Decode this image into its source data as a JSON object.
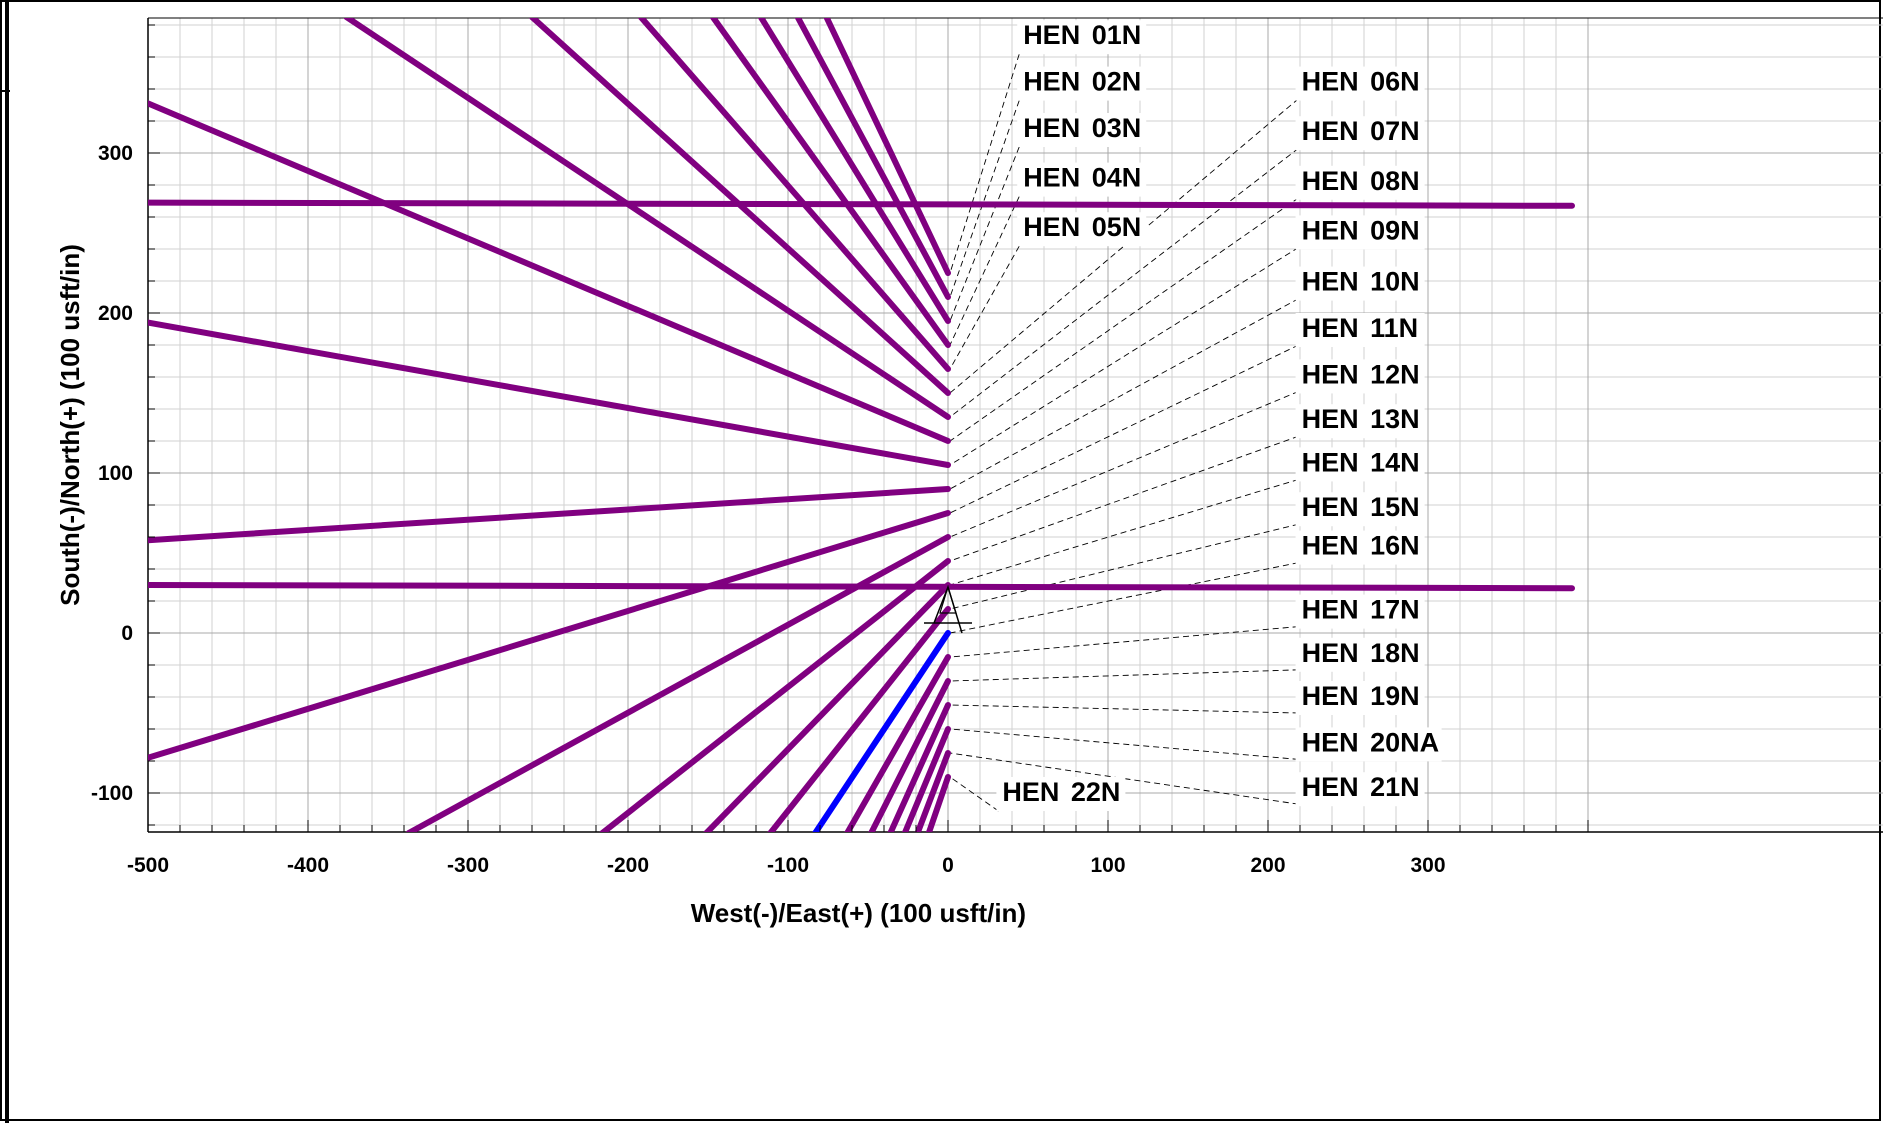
{
  "chart_data": {
    "type": "line",
    "title": "",
    "xlabel": "West(-)/East(+) (100 usft/in)",
    "ylabel": "South(-)/North(+) (100 usft/in)",
    "xlim": [
      -500,
      390
    ],
    "ylim": [
      -125,
      385
    ],
    "x_ticks": [
      -500,
      -400,
      -300,
      -200,
      -100,
      0,
      100,
      200,
      300
    ],
    "y_ticks": [
      -100,
      0,
      100,
      200,
      300
    ],
    "grid": true,
    "colors": {
      "well": "#800080",
      "highlight": "#0000ff",
      "leader": "#000000",
      "grid": "#c8c8c8"
    },
    "series": [
      {
        "name": "HEN 01N",
        "color": "#800080",
        "points": [
          [
            0,
            225
          ],
          [
            -76,
            385
          ]
        ]
      },
      {
        "name": "HEN 02N",
        "color": "#800080",
        "points": [
          [
            0,
            210
          ],
          [
            -94,
            385
          ]
        ]
      },
      {
        "name": "HEN 03N",
        "color": "#800080",
        "points": [
          [
            0,
            195
          ],
          [
            -117,
            385
          ]
        ]
      },
      {
        "name": "HEN 04N",
        "color": "#800080",
        "points": [
          [
            0,
            180
          ],
          [
            -147,
            385
          ]
        ]
      },
      {
        "name": "HEN 05N",
        "color": "#800080",
        "points": [
          [
            0,
            165
          ],
          [
            -192,
            385
          ]
        ]
      },
      {
        "name": "HEN 06N",
        "color": "#800080",
        "points": [
          [
            0,
            150
          ],
          [
            -260,
            385
          ]
        ]
      },
      {
        "name": "HEN 07N",
        "color": "#800080",
        "points": [
          [
            0,
            135
          ],
          [
            -376,
            385
          ]
        ]
      },
      {
        "name": "HEN 08N",
        "color": "#800080",
        "points": [
          [
            0,
            120
          ],
          [
            -500,
            331
          ]
        ]
      },
      {
        "name": "HEN 09N",
        "color": "#800080",
        "points": [
          [
            0,
            105
          ],
          [
            -500,
            194
          ]
        ]
      },
      {
        "name": "HEN 10N",
        "color": "#800080",
        "points": [
          [
            0,
            90
          ],
          [
            -500,
            58
          ]
        ]
      },
      {
        "name": "HEN 11N",
        "color": "#800080",
        "points": [
          [
            0,
            75
          ],
          [
            -500,
            -78
          ]
        ]
      },
      {
        "name": "HEN 12N",
        "color": "#800080",
        "points": [
          [
            0,
            60
          ],
          [
            -337,
            -125
          ]
        ]
      },
      {
        "name": "HEN 13N",
        "color": "#800080",
        "points": [
          [
            0,
            45
          ],
          [
            -216,
            -125
          ]
        ]
      },
      {
        "name": "HEN 14N",
        "color": "#800080",
        "points": [
          [
            0,
            30
          ],
          [
            -151,
            -125
          ]
        ]
      },
      {
        "name": "HEN 15N",
        "color": "#800080",
        "points": [
          [
            0,
            15
          ],
          [
            -111,
            -125
          ]
        ]
      },
      {
        "name": "HEN 16N",
        "color": "#0000ff",
        "points": [
          [
            0,
            0
          ],
          [
            -83,
            -125
          ]
        ]
      },
      {
        "name": "HEN 17N",
        "color": "#800080",
        "points": [
          [
            0,
            -15
          ],
          [
            -63,
            -125
          ]
        ]
      },
      {
        "name": "HEN 18N",
        "color": "#800080",
        "points": [
          [
            0,
            -30
          ],
          [
            -48,
            -125
          ]
        ]
      },
      {
        "name": "HEN 19N",
        "color": "#800080",
        "points": [
          [
            0,
            -45
          ],
          [
            -36,
            -125
          ]
        ]
      },
      {
        "name": "HEN 20NA",
        "color": "#800080",
        "points": [
          [
            0,
            -60
          ],
          [
            -27,
            -125
          ]
        ]
      },
      {
        "name": "HEN 21N",
        "color": "#800080",
        "points": [
          [
            0,
            -75
          ],
          [
            -19,
            -125
          ]
        ]
      },
      {
        "name": "HEN 22N",
        "color": "#800080",
        "points": [
          [
            0,
            -90
          ],
          [
            -12,
            -125
          ]
        ]
      },
      {
        "name": "",
        "color": "#800080",
        "points": [
          [
            -500,
            269
          ],
          [
            390,
            267
          ]
        ]
      },
      {
        "name": "",
        "color": "#800080",
        "points": [
          [
            -500,
            30
          ],
          [
            390,
            28
          ]
        ]
      }
    ],
    "labels": [
      {
        "text": "HEN 01N",
        "at": [
          47,
          368
        ],
        "anchor": [
          0,
          225
        ]
      },
      {
        "text": "HEN 02N",
        "at": [
          47,
          339
        ],
        "anchor": [
          0,
          210
        ]
      },
      {
        "text": "HEN 03N",
        "at": [
          47,
          310
        ],
        "anchor": [
          0,
          195
        ]
      },
      {
        "text": "HEN 04N",
        "at": [
          47,
          279
        ],
        "anchor": [
          0,
          180
        ]
      },
      {
        "text": "HEN 05N",
        "at": [
          47,
          248
        ],
        "anchor": [
          0,
          165
        ]
      },
      {
        "text": "HEN 06N",
        "at": [
          221,
          339
        ],
        "anchor": [
          0,
          150
        ]
      },
      {
        "text": "HEN 07N",
        "at": [
          221,
          308
        ],
        "anchor": [
          0,
          135
        ]
      },
      {
        "text": "HEN 08N",
        "at": [
          221,
          277
        ],
        "anchor": [
          0,
          120
        ]
      },
      {
        "text": "HEN 09N",
        "at": [
          221,
          246
        ],
        "anchor": [
          0,
          105
        ]
      },
      {
        "text": "HEN 10N",
        "at": [
          221,
          214
        ],
        "anchor": [
          0,
          90
        ]
      },
      {
        "text": "HEN 11N",
        "at": [
          221,
          185
        ],
        "anchor": [
          0,
          75
        ]
      },
      {
        "text": "HEN 12N",
        "at": [
          221,
          156
        ],
        "anchor": [
          0,
          60
        ]
      },
      {
        "text": "HEN 13N",
        "at": [
          221,
          128
        ],
        "anchor": [
          0,
          45
        ]
      },
      {
        "text": "HEN 14N",
        "at": [
          221,
          101
        ],
        "anchor": [
          0,
          30
        ]
      },
      {
        "text": "HEN 15N",
        "at": [
          221,
          73
        ],
        "anchor": [
          0,
          15
        ]
      },
      {
        "text": "HEN 16N",
        "at": [
          221,
          49
        ],
        "anchor": [
          0,
          0
        ]
      },
      {
        "text": "HEN 17N",
        "at": [
          221,
          9
        ],
        "anchor": [
          0,
          -15
        ]
      },
      {
        "text": "HEN 18N",
        "at": [
          221,
          -18
        ],
        "anchor": [
          0,
          -30
        ]
      },
      {
        "text": "HEN 19N",
        "at": [
          221,
          -45
        ],
        "anchor": [
          0,
          -45
        ]
      },
      {
        "text": "HEN 20NA",
        "at": [
          221,
          -74
        ],
        "anchor": [
          0,
          -60
        ]
      },
      {
        "text": "HEN 21N",
        "at": [
          221,
          -102
        ],
        "anchor": [
          0,
          -75
        ]
      },
      {
        "text": "HEN 22N",
        "at": [
          34,
          -105
        ],
        "anchor": [
          0,
          -90
        ]
      }
    ]
  }
}
